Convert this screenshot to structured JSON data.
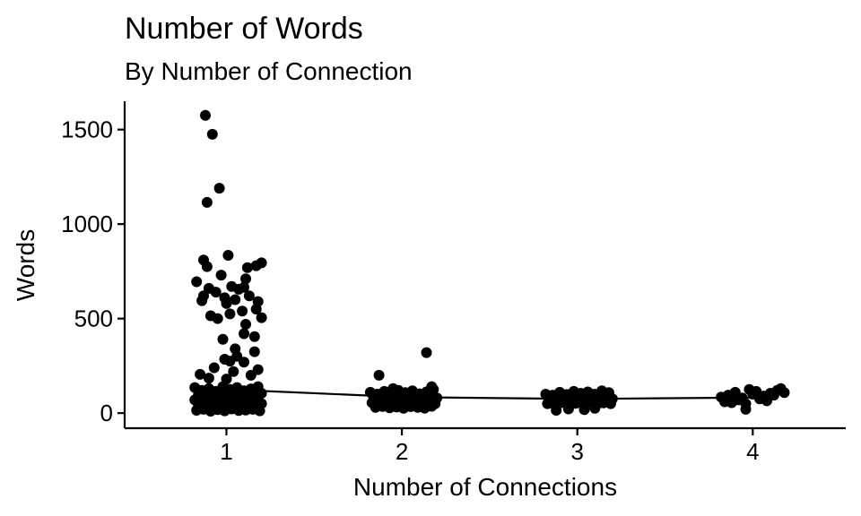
{
  "chart_data": {
    "type": "scatter",
    "title": "Number of Words",
    "subtitle": "By Number of Connection",
    "xlabel": "Number of Connections",
    "ylabel": "Words",
    "categories": [
      "1",
      "2",
      "3",
      "4"
    ],
    "x_tick_labels": [
      "1",
      "2",
      "3",
      "4"
    ],
    "y_ticks": [
      0,
      500,
      1000,
      1500
    ],
    "y_tick_labels": [
      "0",
      "500",
      "1000",
      "1500"
    ],
    "ylim": [
      -80,
      1650
    ],
    "xlim": [
      0.42,
      4.53
    ],
    "grid": false,
    "legend": "none",
    "point_color": "#000000",
    "line_color": "#000000",
    "means": [
      {
        "x": 1,
        "y": 125
      },
      {
        "x": 2,
        "y": 85
      },
      {
        "x": 3,
        "y": 75
      },
      {
        "x": 4,
        "y": 82
      }
    ],
    "points": [
      {
        "x": 0.88,
        "y": 1575
      },
      {
        "x": 0.92,
        "y": 1475
      },
      {
        "x": 0.96,
        "y": 1190
      },
      {
        "x": 0.89,
        "y": 1115
      },
      {
        "x": 1.01,
        "y": 835
      },
      {
        "x": 0.87,
        "y": 810
      },
      {
        "x": 1.2,
        "y": 795
      },
      {
        "x": 1.17,
        "y": 780
      },
      {
        "x": 0.89,
        "y": 775
      },
      {
        "x": 1.12,
        "y": 770
      },
      {
        "x": 0.97,
        "y": 730
      },
      {
        "x": 1.11,
        "y": 710
      },
      {
        "x": 0.83,
        "y": 695
      },
      {
        "x": 1.03,
        "y": 670
      },
      {
        "x": 1.1,
        "y": 665
      },
      {
        "x": 0.9,
        "y": 660
      },
      {
        "x": 1.07,
        "y": 655
      },
      {
        "x": 0.94,
        "y": 640
      },
      {
        "x": 0.87,
        "y": 620
      },
      {
        "x": 1.13,
        "y": 620
      },
      {
        "x": 0.99,
        "y": 610
      },
      {
        "x": 1.05,
        "y": 600
      },
      {
        "x": 0.86,
        "y": 595
      },
      {
        "x": 1.18,
        "y": 590
      },
      {
        "x": 1.0,
        "y": 580
      },
      {
        "x": 1.17,
        "y": 550
      },
      {
        "x": 1.09,
        "y": 540
      },
      {
        "x": 1.02,
        "y": 525
      },
      {
        "x": 0.91,
        "y": 515
      },
      {
        "x": 1.2,
        "y": 505
      },
      {
        "x": 0.95,
        "y": 500
      },
      {
        "x": 1.11,
        "y": 470
      },
      {
        "x": 1.1,
        "y": 420
      },
      {
        "x": 1.16,
        "y": 405
      },
      {
        "x": 0.98,
        "y": 390
      },
      {
        "x": 1.05,
        "y": 340
      },
      {
        "x": 1.16,
        "y": 325
      },
      {
        "x": 1.06,
        "y": 300
      },
      {
        "x": 0.99,
        "y": 285
      },
      {
        "x": 1.02,
        "y": 275
      },
      {
        "x": 1.1,
        "y": 270
      },
      {
        "x": 0.93,
        "y": 240
      },
      {
        "x": 1.18,
        "y": 230
      },
      {
        "x": 1.04,
        "y": 220
      },
      {
        "x": 0.85,
        "y": 205
      },
      {
        "x": 1.14,
        "y": 200
      },
      {
        "x": 0.9,
        "y": 185
      },
      {
        "x": 1.0,
        "y": 180
      },
      {
        "x": 0.82,
        "y": 135
      },
      {
        "x": 0.86,
        "y": 120
      },
      {
        "x": 0.9,
        "y": 130
      },
      {
        "x": 0.94,
        "y": 115
      },
      {
        "x": 0.98,
        "y": 140
      },
      {
        "x": 1.02,
        "y": 125
      },
      {
        "x": 1.06,
        "y": 135
      },
      {
        "x": 1.1,
        "y": 118
      },
      {
        "x": 1.14,
        "y": 128
      },
      {
        "x": 1.18,
        "y": 140
      },
      {
        "x": 0.84,
        "y": 95
      },
      {
        "x": 0.88,
        "y": 100
      },
      {
        "x": 0.92,
        "y": 90
      },
      {
        "x": 0.96,
        "y": 105
      },
      {
        "x": 1.0,
        "y": 98
      },
      {
        "x": 1.04,
        "y": 92
      },
      {
        "x": 1.08,
        "y": 102
      },
      {
        "x": 1.12,
        "y": 88
      },
      {
        "x": 1.16,
        "y": 96
      },
      {
        "x": 1.2,
        "y": 105
      },
      {
        "x": 0.82,
        "y": 70
      },
      {
        "x": 0.86,
        "y": 65
      },
      {
        "x": 0.9,
        "y": 75
      },
      {
        "x": 0.94,
        "y": 60
      },
      {
        "x": 0.98,
        "y": 72
      },
      {
        "x": 1.02,
        "y": 68
      },
      {
        "x": 1.06,
        "y": 78
      },
      {
        "x": 1.1,
        "y": 62
      },
      {
        "x": 1.14,
        "y": 70
      },
      {
        "x": 1.18,
        "y": 66
      },
      {
        "x": 0.84,
        "y": 40
      },
      {
        "x": 0.88,
        "y": 45
      },
      {
        "x": 0.92,
        "y": 35
      },
      {
        "x": 0.96,
        "y": 42
      },
      {
        "x": 1.0,
        "y": 38
      },
      {
        "x": 1.04,
        "y": 48
      },
      {
        "x": 1.08,
        "y": 36
      },
      {
        "x": 1.12,
        "y": 44
      },
      {
        "x": 1.16,
        "y": 40
      },
      {
        "x": 1.2,
        "y": 50
      },
      {
        "x": 0.83,
        "y": 15
      },
      {
        "x": 0.87,
        "y": 20
      },
      {
        "x": 0.91,
        "y": 10
      },
      {
        "x": 0.95,
        "y": 18
      },
      {
        "x": 0.99,
        "y": 12
      },
      {
        "x": 1.03,
        "y": 22
      },
      {
        "x": 1.07,
        "y": 14
      },
      {
        "x": 1.11,
        "y": 16
      },
      {
        "x": 1.15,
        "y": 20
      },
      {
        "x": 1.19,
        "y": 12
      },
      {
        "x": 1.87,
        "y": 200
      },
      {
        "x": 2.14,
        "y": 320
      },
      {
        "x": 2.17,
        "y": 140
      },
      {
        "x": 1.95,
        "y": 130
      },
      {
        "x": 1.82,
        "y": 110
      },
      {
        "x": 1.86,
        "y": 100
      },
      {
        "x": 1.9,
        "y": 115
      },
      {
        "x": 1.94,
        "y": 105
      },
      {
        "x": 1.98,
        "y": 120
      },
      {
        "x": 2.02,
        "y": 108
      },
      {
        "x": 2.06,
        "y": 118
      },
      {
        "x": 2.1,
        "y": 102
      },
      {
        "x": 2.14,
        "y": 112
      },
      {
        "x": 2.18,
        "y": 125
      },
      {
        "x": 1.84,
        "y": 80
      },
      {
        "x": 1.88,
        "y": 85
      },
      {
        "x": 1.92,
        "y": 75
      },
      {
        "x": 1.96,
        "y": 88
      },
      {
        "x": 2.0,
        "y": 78
      },
      {
        "x": 2.04,
        "y": 82
      },
      {
        "x": 2.08,
        "y": 90
      },
      {
        "x": 2.12,
        "y": 76
      },
      {
        "x": 2.16,
        "y": 84
      },
      {
        "x": 2.2,
        "y": 80
      },
      {
        "x": 1.83,
        "y": 55
      },
      {
        "x": 1.87,
        "y": 50
      },
      {
        "x": 1.91,
        "y": 60
      },
      {
        "x": 1.95,
        "y": 48
      },
      {
        "x": 1.99,
        "y": 58
      },
      {
        "x": 2.03,
        "y": 52
      },
      {
        "x": 2.07,
        "y": 62
      },
      {
        "x": 2.11,
        "y": 46
      },
      {
        "x": 2.15,
        "y": 56
      },
      {
        "x": 2.19,
        "y": 50
      },
      {
        "x": 1.85,
        "y": 30
      },
      {
        "x": 1.89,
        "y": 35
      },
      {
        "x": 1.93,
        "y": 28
      },
      {
        "x": 1.97,
        "y": 32
      },
      {
        "x": 2.01,
        "y": 25
      },
      {
        "x": 2.05,
        "y": 34
      },
      {
        "x": 2.09,
        "y": 30
      },
      {
        "x": 2.13,
        "y": 26
      },
      {
        "x": 2.17,
        "y": 36
      },
      {
        "x": 2.82,
        "y": 100
      },
      {
        "x": 2.86,
        "y": 95
      },
      {
        "x": 2.9,
        "y": 110
      },
      {
        "x": 2.94,
        "y": 98
      },
      {
        "x": 2.98,
        "y": 115
      },
      {
        "x": 3.02,
        "y": 105
      },
      {
        "x": 3.06,
        "y": 112
      },
      {
        "x": 3.1,
        "y": 100
      },
      {
        "x": 3.14,
        "y": 118
      },
      {
        "x": 3.18,
        "y": 108
      },
      {
        "x": 2.84,
        "y": 75
      },
      {
        "x": 2.88,
        "y": 80
      },
      {
        "x": 2.92,
        "y": 70
      },
      {
        "x": 2.96,
        "y": 82
      },
      {
        "x": 3.0,
        "y": 74
      },
      {
        "x": 3.04,
        "y": 78
      },
      {
        "x": 3.08,
        "y": 85
      },
      {
        "x": 3.12,
        "y": 72
      },
      {
        "x": 3.16,
        "y": 80
      },
      {
        "x": 3.2,
        "y": 76
      },
      {
        "x": 2.83,
        "y": 50
      },
      {
        "x": 2.87,
        "y": 45
      },
      {
        "x": 2.91,
        "y": 55
      },
      {
        "x": 2.95,
        "y": 42
      },
      {
        "x": 2.99,
        "y": 52
      },
      {
        "x": 3.03,
        "y": 48
      },
      {
        "x": 3.07,
        "y": 58
      },
      {
        "x": 3.11,
        "y": 44
      },
      {
        "x": 3.15,
        "y": 54
      },
      {
        "x": 3.19,
        "y": 50
      },
      {
        "x": 2.88,
        "y": 15
      },
      {
        "x": 2.95,
        "y": 22
      },
      {
        "x": 3.04,
        "y": 18
      },
      {
        "x": 3.1,
        "y": 25
      },
      {
        "x": 3.82,
        "y": 85
      },
      {
        "x": 3.86,
        "y": 95
      },
      {
        "x": 3.9,
        "y": 110
      },
      {
        "x": 3.94,
        "y": 80
      },
      {
        "x": 3.98,
        "y": 125
      },
      {
        "x": 4.0,
        "y": 100
      },
      {
        "x": 4.02,
        "y": 115
      },
      {
        "x": 4.06,
        "y": 90
      },
      {
        "x": 4.1,
        "y": 105
      },
      {
        "x": 4.14,
        "y": 120
      },
      {
        "x": 4.18,
        "y": 108
      },
      {
        "x": 3.84,
        "y": 60
      },
      {
        "x": 3.88,
        "y": 55
      },
      {
        "x": 3.92,
        "y": 70
      },
      {
        "x": 3.96,
        "y": 50
      },
      {
        "x": 4.04,
        "y": 75
      },
      {
        "x": 4.08,
        "y": 65
      },
      {
        "x": 3.96,
        "y": 20
      },
      {
        "x": 4.12,
        "y": 95
      },
      {
        "x": 4.16,
        "y": 130
      }
    ]
  }
}
